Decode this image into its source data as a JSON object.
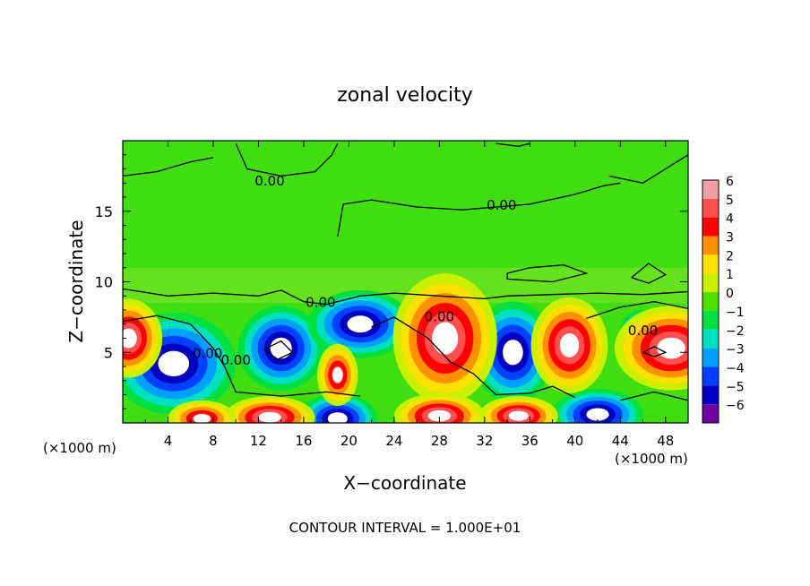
{
  "chart_data": {
    "type": "heatmap",
    "title": "zonal velocity",
    "xlabel": "X−coordinate",
    "ylabel": "Z−coordinate",
    "x_unit_left": "(×1000 m)",
    "x_unit_right": "(×1000 m)",
    "footer": "CONTOUR INTERVAL = 1.000E+01",
    "xlim": [
      0,
      50
    ],
    "ylim": [
      0,
      20
    ],
    "x_ticks": [
      4,
      8,
      12,
      16,
      20,
      24,
      28,
      32,
      36,
      40,
      44,
      48
    ],
    "y_ticks": [
      5,
      10,
      15
    ],
    "contour_labels": [
      {
        "text": "0.00",
        "x": 13,
        "z": 17.2
      },
      {
        "text": "0.00",
        "x": 33.5,
        "z": 15.5
      },
      {
        "text": "0.00",
        "x": 17.5,
        "z": 8.6
      },
      {
        "text": "0.00",
        "x": 7.5,
        "z": 5.0
      },
      {
        "text": "0.00",
        "x": 10,
        "z": 4.5
      },
      {
        "text": "0.00",
        "x": 28,
        "z": 7.6
      },
      {
        "text": "0.00",
        "x": 46,
        "z": 6.6
      }
    ],
    "colorbar": {
      "ticks": [
        6,
        5,
        4,
        3,
        2,
        1,
        0,
        -1,
        -2,
        -3,
        -4,
        -5,
        -6
      ],
      "tick_labels": [
        "6",
        "5",
        "4",
        "3",
        "2",
        "1",
        "0",
        "−1",
        "−2",
        "−3",
        "−4",
        "−5",
        "−6"
      ],
      "colors": [
        "#f0a0a0",
        "#ff5050",
        "#ff0000",
        "#ff9000",
        "#ffe000",
        "#c8f000",
        "#50e000",
        "#00e040",
        "#00e0c0",
        "#00a0ff",
        "#0040ff",
        "#0000c0",
        "#7000a0"
      ]
    }
  }
}
